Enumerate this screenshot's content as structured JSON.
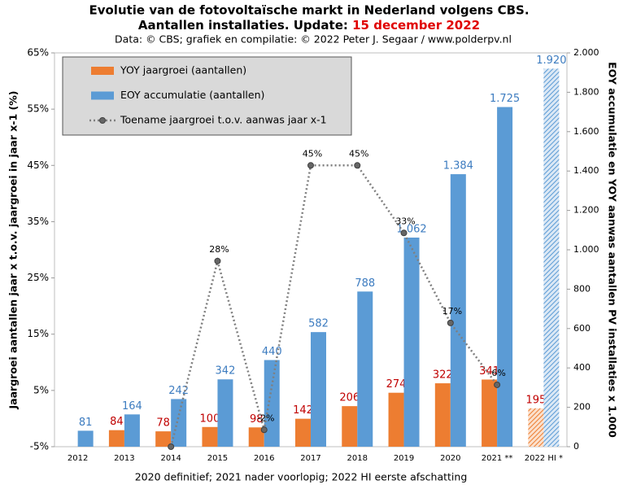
{
  "chart_data": {
    "type": "bar_line",
    "title": "Evolutie van de fotovoltaïsche markt in Nederland volgens CBS.",
    "title_line2": "Aantallen installaties. Update:",
    "update_date": "15 december 2022",
    "subtitle": "Data: © CBS; grafiek en compilatie: © 2022 Peter J. Segaar / www.polderpv.nl",
    "footnote": "2020 definitief; 2021 nader voorlopig; 2022 HI eerste afschatting",
    "ylabel": "Jaargroei aantallen jaar x t.o.v. jaargroei in jaar x-1 (%)",
    "y2label": "EOY accumulatie en YOY aanwas aantallen PV installaties x 1.000",
    "categories": [
      "2012",
      "2013",
      "2014",
      "2015",
      "2016",
      "2017",
      "2018",
      "2019",
      "2020",
      "2021 **",
      "2022 HI *"
    ],
    "series": [
      {
        "name": "YOY jaargroei (aantallen)",
        "type": "bar",
        "axis": "y2",
        "color": "#ed7d31",
        "label_color": "#c00000",
        "values": [
          null,
          84,
          78,
          100,
          98,
          142,
          206,
          274,
          322,
          341,
          195
        ],
        "hatched": [
          false,
          false,
          false,
          false,
          false,
          false,
          false,
          false,
          false,
          false,
          true
        ]
      },
      {
        "name": "EOY accumulatie (aantallen)",
        "type": "bar",
        "axis": "y2",
        "color": "#5b9bd5",
        "label_color": "#3d7cc0",
        "values": [
          81,
          164,
          242,
          342,
          440,
          582,
          788,
          1062,
          1384,
          1725,
          1920
        ],
        "value_labels": [
          "81",
          "164",
          "242",
          "342",
          "440",
          "582",
          "788",
          "1.062",
          "1.384",
          "1.725",
          "1.920"
        ],
        "hatched": [
          false,
          false,
          false,
          false,
          false,
          false,
          false,
          false,
          false,
          false,
          true
        ]
      },
      {
        "name": "Toename jaargroei t.o.v. aanwas jaar x-1",
        "type": "line",
        "axis": "y",
        "color": "#7f7f7f",
        "label_color": "#000000",
        "values": [
          null,
          null,
          -5,
          28,
          -2,
          45,
          45,
          33,
          17,
          6,
          null
        ],
        "value_labels": [
          null,
          null,
          null,
          "28%",
          "-2%",
          "45%",
          "45%",
          "33%",
          "17%",
          "6%",
          null
        ]
      }
    ],
    "ylim": [
      -5,
      65
    ],
    "yticks": [
      {
        "value": -5,
        "label": "-5%"
      },
      {
        "value": 5,
        "label": "5%"
      },
      {
        "value": 15,
        "label": "15%"
      },
      {
        "value": 25,
        "label": "25%"
      },
      {
        "value": 35,
        "label": "35%"
      },
      {
        "value": 45,
        "label": "45%"
      },
      {
        "value": 55,
        "label": "55%"
      },
      {
        "value": 65,
        "label": "65%"
      }
    ],
    "y2lim": [
      0,
      2000
    ],
    "y2ticks": [
      0,
      200,
      400,
      600,
      800,
      {
        "value": 1000,
        "label": "1.000"
      },
      {
        "value": 1200,
        "label": "1.200"
      },
      {
        "value": 1400,
        "label": "1.400"
      },
      {
        "value": 1600,
        "label": "1.600"
      },
      {
        "value": 1800,
        "label": "1.800"
      },
      {
        "value": 2000,
        "label": "2.000"
      }
    ],
    "legend": "upper left",
    "grid": false
  }
}
